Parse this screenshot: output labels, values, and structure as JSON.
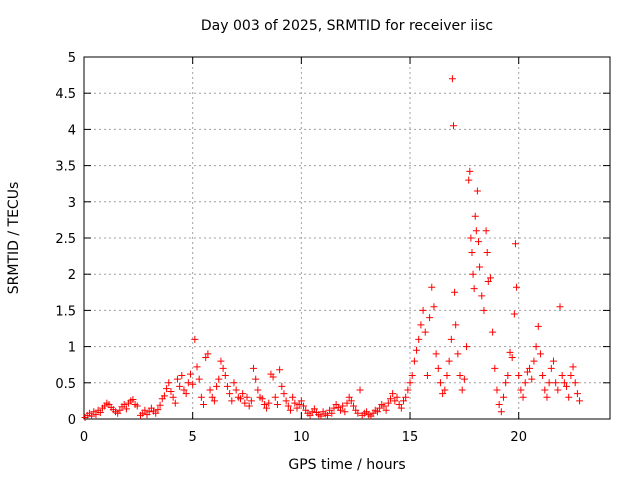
{
  "chart_data": {
    "type": "scatter",
    "title": "Day 003 of 2025, SRMTID for receiver iisc",
    "xlabel": "GPS time / hours",
    "ylabel": "SRMTID / TECUs",
    "xlim": [
      0,
      24.2
    ],
    "ylim": [
      0,
      5
    ],
    "xticks": [
      0,
      5,
      10,
      15,
      20
    ],
    "xtick_labels": [
      "0",
      "5",
      "10",
      "15",
      "20"
    ],
    "yticks": [
      0,
      0.5,
      1,
      1.5,
      2,
      2.5,
      3,
      3.5,
      4,
      4.5,
      5
    ],
    "ytick_labels": [
      "0",
      "0.5",
      "1",
      "1.5",
      "2",
      "2.5",
      "3",
      "3.5",
      "4",
      "4.5",
      "5"
    ],
    "grid": true,
    "marker": "+",
    "color": "#ff0000",
    "series": [
      {
        "name": "SRMTID",
        "points": [
          [
            0.05,
            0.02
          ],
          [
            0.15,
            0.05
          ],
          [
            0.25,
            0.08
          ],
          [
            0.35,
            0.04
          ],
          [
            0.45,
            0.1
          ],
          [
            0.55,
            0.06
          ],
          [
            0.65,
            0.12
          ],
          [
            0.75,
            0.09
          ],
          [
            0.85,
            0.15
          ],
          [
            0.95,
            0.18
          ],
          [
            1.05,
            0.22
          ],
          [
            1.15,
            0.2
          ],
          [
            1.25,
            0.16
          ],
          [
            1.35,
            0.13
          ],
          [
            1.45,
            0.1
          ],
          [
            1.55,
            0.08
          ],
          [
            1.65,
            0.12
          ],
          [
            1.75,
            0.17
          ],
          [
            1.85,
            0.2
          ],
          [
            1.95,
            0.14
          ],
          [
            2.05,
            0.22
          ],
          [
            2.15,
            0.25
          ],
          [
            2.25,
            0.27
          ],
          [
            2.35,
            0.2
          ],
          [
            2.45,
            0.18
          ],
          [
            2.6,
            0.05
          ],
          [
            2.7,
            0.08
          ],
          [
            2.8,
            0.12
          ],
          [
            2.9,
            0.06
          ],
          [
            3.0,
            0.1
          ],
          [
            3.1,
            0.15
          ],
          [
            3.2,
            0.11
          ],
          [
            3.3,
            0.08
          ],
          [
            3.4,
            0.13
          ],
          [
            3.5,
            0.19
          ],
          [
            3.6,
            0.28
          ],
          [
            3.7,
            0.32
          ],
          [
            3.8,
            0.42
          ],
          [
            3.9,
            0.5
          ],
          [
            4.0,
            0.38
          ],
          [
            4.1,
            0.3
          ],
          [
            4.2,
            0.22
          ],
          [
            4.3,
            0.55
          ],
          [
            4.4,
            0.45
          ],
          [
            4.5,
            0.6
          ],
          [
            4.6,
            0.4
          ],
          [
            4.7,
            0.35
          ],
          [
            4.8,
            0.5
          ],
          [
            4.9,
            0.62
          ],
          [
            5.0,
            0.48
          ],
          [
            5.1,
            1.1
          ],
          [
            5.2,
            0.72
          ],
          [
            5.3,
            0.55
          ],
          [
            5.4,
            0.3
          ],
          [
            5.5,
            0.2
          ],
          [
            5.6,
            0.85
          ],
          [
            5.7,
            0.9
          ],
          [
            5.8,
            0.4
          ],
          [
            5.9,
            0.3
          ],
          [
            6.0,
            0.25
          ],
          [
            6.1,
            0.45
          ],
          [
            6.2,
            0.55
          ],
          [
            6.3,
            0.8
          ],
          [
            6.4,
            0.7
          ],
          [
            6.5,
            0.6
          ],
          [
            6.6,
            0.45
          ],
          [
            6.7,
            0.35
          ],
          [
            6.8,
            0.25
          ],
          [
            6.9,
            0.5
          ],
          [
            7.0,
            0.4
          ],
          [
            7.1,
            0.3
          ],
          [
            7.2,
            0.28
          ],
          [
            7.3,
            0.35
          ],
          [
            7.4,
            0.22
          ],
          [
            7.5,
            0.3
          ],
          [
            7.6,
            0.18
          ],
          [
            7.7,
            0.25
          ],
          [
            7.8,
            0.7
          ],
          [
            7.9,
            0.55
          ],
          [
            8.0,
            0.4
          ],
          [
            8.1,
            0.3
          ],
          [
            8.2,
            0.28
          ],
          [
            8.3,
            0.2
          ],
          [
            8.4,
            0.15
          ],
          [
            8.5,
            0.22
          ],
          [
            8.6,
            0.62
          ],
          [
            8.7,
            0.58
          ],
          [
            8.8,
            0.3
          ],
          [
            8.9,
            0.2
          ],
          [
            9.0,
            0.68
          ],
          [
            9.1,
            0.45
          ],
          [
            9.2,
            0.35
          ],
          [
            9.3,
            0.25
          ],
          [
            9.4,
            0.18
          ],
          [
            9.5,
            0.12
          ],
          [
            9.6,
            0.3
          ],
          [
            9.7,
            0.22
          ],
          [
            9.8,
            0.15
          ],
          [
            9.9,
            0.2
          ],
          [
            10.0,
            0.25
          ],
          [
            10.1,
            0.18
          ],
          [
            10.2,
            0.12
          ],
          [
            10.3,
            0.08
          ],
          [
            10.4,
            0.05
          ],
          [
            10.5,
            0.1
          ],
          [
            10.6,
            0.14
          ],
          [
            10.7,
            0.09
          ],
          [
            10.8,
            0.06
          ],
          [
            10.9,
            0.04
          ],
          [
            11.0,
            0.1
          ],
          [
            11.1,
            0.07
          ],
          [
            11.2,
            0.05
          ],
          [
            11.3,
            0.12
          ],
          [
            11.4,
            0.08
          ],
          [
            11.5,
            0.15
          ],
          [
            11.6,
            0.2
          ],
          [
            11.7,
            0.16
          ],
          [
            11.8,
            0.12
          ],
          [
            11.9,
            0.18
          ],
          [
            12.0,
            0.1
          ],
          [
            12.1,
            0.22
          ],
          [
            12.2,
            0.3
          ],
          [
            12.3,
            0.25
          ],
          [
            12.4,
            0.18
          ],
          [
            12.5,
            0.12
          ],
          [
            12.6,
            0.08
          ],
          [
            12.7,
            0.4
          ],
          [
            12.8,
            0.05
          ],
          [
            12.9,
            0.08
          ],
          [
            13.0,
            0.1
          ],
          [
            13.1,
            0.06
          ],
          [
            13.2,
            0.04
          ],
          [
            13.3,
            0.08
          ],
          [
            13.4,
            0.12
          ],
          [
            13.5,
            0.1
          ],
          [
            13.6,
            0.15
          ],
          [
            13.7,
            0.2
          ],
          [
            13.8,
            0.18
          ],
          [
            13.9,
            0.12
          ],
          [
            14.0,
            0.22
          ],
          [
            14.1,
            0.28
          ],
          [
            14.2,
            0.35
          ],
          [
            14.3,
            0.25
          ],
          [
            14.4,
            0.3
          ],
          [
            14.5,
            0.2
          ],
          [
            14.6,
            0.15
          ],
          [
            14.7,
            0.25
          ],
          [
            14.8,
            0.3
          ],
          [
            14.9,
            0.4
          ],
          [
            15.0,
            0.5
          ],
          [
            15.1,
            0.6
          ],
          [
            15.2,
            0.8
          ],
          [
            15.3,
            0.95
          ],
          [
            15.4,
            1.1
          ],
          [
            15.5,
            1.3
          ],
          [
            15.6,
            1.5
          ],
          [
            15.7,
            1.2
          ],
          [
            15.8,
            0.6
          ],
          [
            15.9,
            1.4
          ],
          [
            16.0,
            1.82
          ],
          [
            16.1,
            1.55
          ],
          [
            16.2,
            0.9
          ],
          [
            16.3,
            0.7
          ],
          [
            16.4,
            0.5
          ],
          [
            16.5,
            0.35
          ],
          [
            16.6,
            0.4
          ],
          [
            16.7,
            0.6
          ],
          [
            16.8,
            0.8
          ],
          [
            16.9,
            1.1
          ],
          [
            16.95,
            4.7
          ],
          [
            17.0,
            4.05
          ],
          [
            17.05,
            1.75
          ],
          [
            17.1,
            1.3
          ],
          [
            17.2,
            0.9
          ],
          [
            17.3,
            0.6
          ],
          [
            17.4,
            0.4
          ],
          [
            17.5,
            0.55
          ],
          [
            17.6,
            1.0
          ],
          [
            17.7,
            3.3
          ],
          [
            17.75,
            3.42
          ],
          [
            17.8,
            2.5
          ],
          [
            17.85,
            2.3
          ],
          [
            17.9,
            2.0
          ],
          [
            17.95,
            1.8
          ],
          [
            18.0,
            2.8
          ],
          [
            18.05,
            2.6
          ],
          [
            18.1,
            3.15
          ],
          [
            18.15,
            2.45
          ],
          [
            18.2,
            2.1
          ],
          [
            18.3,
            1.7
          ],
          [
            18.4,
            1.5
          ],
          [
            18.5,
            2.6
          ],
          [
            18.55,
            2.3
          ],
          [
            18.6,
            1.9
          ],
          [
            18.7,
            1.95
          ],
          [
            18.8,
            1.2
          ],
          [
            18.9,
            0.7
          ],
          [
            19.0,
            0.4
          ],
          [
            19.1,
            0.2
          ],
          [
            19.2,
            0.1
          ],
          [
            19.3,
            0.3
          ],
          [
            19.4,
            0.5
          ],
          [
            19.5,
            0.6
          ],
          [
            19.6,
            0.92
          ],
          [
            19.7,
            0.85
          ],
          [
            19.8,
            1.45
          ],
          [
            19.85,
            2.42
          ],
          [
            19.9,
            1.82
          ],
          [
            20.0,
            0.6
          ],
          [
            20.1,
            0.4
          ],
          [
            20.2,
            0.3
          ],
          [
            20.3,
            0.5
          ],
          [
            20.4,
            0.65
          ],
          [
            20.5,
            0.7
          ],
          [
            20.6,
            0.55
          ],
          [
            20.7,
            0.8
          ],
          [
            20.8,
            1.0
          ],
          [
            20.9,
            1.28
          ],
          [
            21.0,
            0.9
          ],
          [
            21.1,
            0.6
          ],
          [
            21.2,
            0.4
          ],
          [
            21.3,
            0.3
          ],
          [
            21.4,
            0.5
          ],
          [
            21.5,
            0.7
          ],
          [
            21.6,
            0.8
          ],
          [
            21.7,
            0.5
          ],
          [
            21.8,
            0.4
          ],
          [
            21.9,
            1.55
          ],
          [
            22.0,
            0.6
          ],
          [
            22.1,
            0.5
          ],
          [
            22.2,
            0.45
          ],
          [
            22.3,
            0.3
          ],
          [
            22.4,
            0.6
          ],
          [
            22.5,
            0.72
          ],
          [
            22.6,
            0.5
          ],
          [
            22.7,
            0.35
          ],
          [
            22.8,
            0.25
          ]
        ]
      }
    ]
  }
}
